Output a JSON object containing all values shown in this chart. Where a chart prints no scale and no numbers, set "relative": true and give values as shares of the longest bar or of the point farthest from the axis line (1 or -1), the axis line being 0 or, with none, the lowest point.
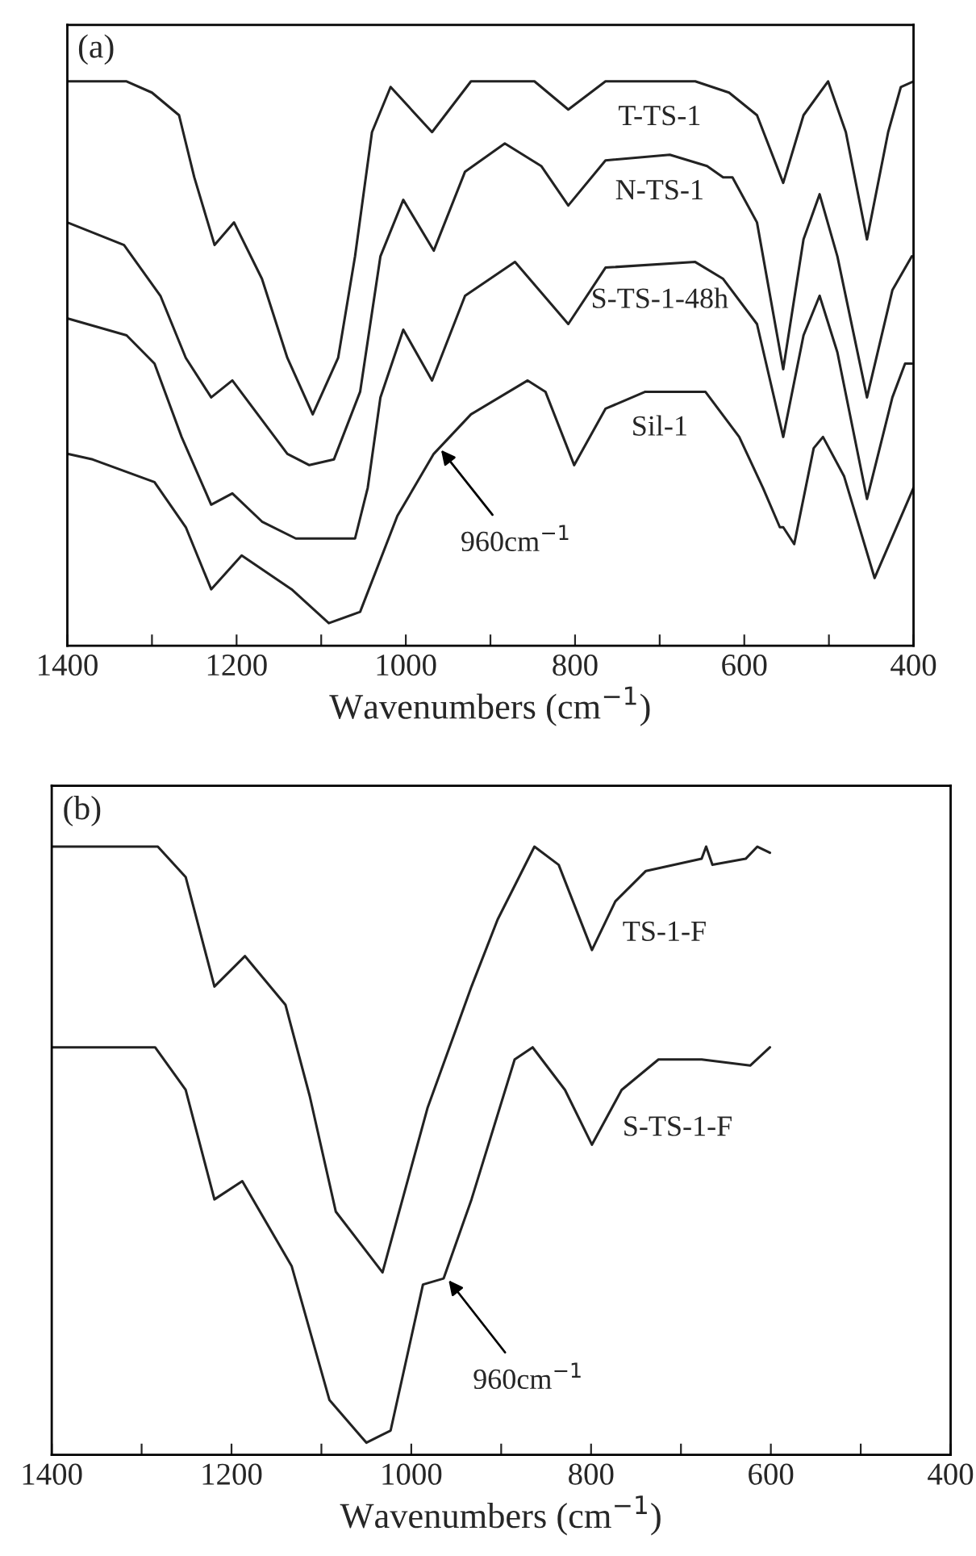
{
  "chart_data": [
    {
      "type": "line",
      "relative": true,
      "xlabel": "Wavenumbers (cm$^{−1}$)",
      "xlim": [
        1400,
        400
      ],
      "xticks": [
        1400,
        {
          "value": 1300,
          "label": null
        },
        1200,
        {
          "value": 1100,
          "label": null
        },
        1000,
        {
          "value": 900,
          "label": null
        },
        800,
        {
          "value": 700,
          "label": null
        },
        600,
        {
          "value": 500,
          "label": null
        },
        400
      ],
      "tick_labels": "x",
      "grid": false,
      "legend": false,
      "annotations": [
        "(a)",
        {
          "text": "960cm$^{−1}$",
          "x": 960,
          "y": 0.35
        }
      ],
      "series": [
        {
          "name": "T-TS-1",
          "color": "#222222",
          "x": [
            1400,
            1330,
            1300,
            1268,
            1250,
            1226,
            1203,
            1170,
            1140,
            1110,
            1080,
            1060,
            1040,
            1018,
            969,
            923,
            848,
            808,
            764,
            658,
            618,
            585,
            554,
            530,
            501,
            480,
            455,
            430,
            415,
            400
          ],
          "values": [
            1.0,
            1.0,
            0.98,
            0.94,
            0.83,
            0.71,
            0.75,
            0.65,
            0.51,
            0.41,
            0.51,
            0.69,
            0.91,
            0.99,
            0.91,
            1.0,
            1.0,
            0.95,
            1.0,
            1.0,
            0.98,
            0.94,
            0.82,
            0.94,
            1.0,
            0.91,
            0.72,
            0.91,
            0.99,
            1.0
          ]
        },
        {
          "name": "N-TS-1",
          "color": "#222222",
          "x": [
            1400,
            1333,
            1290,
            1260,
            1230,
            1205,
            1170,
            1140,
            1114,
            1085,
            1054,
            1030,
            1003,
            967,
            930,
            883,
            840,
            808,
            764,
            688,
            644,
            625,
            614,
            585,
            554,
            530,
            511,
            490,
            455,
            425,
            402
          ],
          "values": [
            0.75,
            0.71,
            0.62,
            0.51,
            0.44,
            0.47,
            0.4,
            0.34,
            0.32,
            0.33,
            0.45,
            0.69,
            0.79,
            0.7,
            0.84,
            0.89,
            0.85,
            0.78,
            0.86,
            0.87,
            0.85,
            0.83,
            0.83,
            0.75,
            0.49,
            0.72,
            0.8,
            0.69,
            0.44,
            0.63,
            0.69
          ]
        },
        {
          "name": "S-TS-1-48h",
          "color": "#222222",
          "x": [
            1400,
            1330,
            1297,
            1265,
            1230,
            1205,
            1170,
            1130,
            1110,
            1060,
            1045,
            1030,
            1003,
            969,
            930,
            871,
            808,
            764,
            658,
            625,
            585,
            554,
            530,
            511,
            490,
            455,
            425,
            410,
            402
          ],
          "values": [
            0.58,
            0.55,
            0.5,
            0.37,
            0.25,
            0.27,
            0.22,
            0.19,
            0.19,
            0.19,
            0.28,
            0.44,
            0.56,
            0.47,
            0.62,
            0.68,
            0.57,
            0.67,
            0.68,
            0.65,
            0.57,
            0.37,
            0.55,
            0.62,
            0.52,
            0.26,
            0.44,
            0.5,
            0.5
          ]
        },
        {
          "name": "Sil-1",
          "color": "#222222",
          "x": [
            1400,
            1370,
            1297,
            1260,
            1230,
            1194,
            1135,
            1091,
            1054,
            1010,
            967,
            923,
            856,
            835,
            801,
            764,
            717,
            673,
            646,
            606,
            578,
            558,
            554,
            541,
            518,
            507,
            482,
            446,
            400
          ],
          "values": [
            0.34,
            0.33,
            0.29,
            0.21,
            0.1,
            0.16,
            0.1,
            0.04,
            0.06,
            0.23,
            0.34,
            0.41,
            0.47,
            0.45,
            0.32,
            0.42,
            0.45,
            0.45,
            0.45,
            0.37,
            0.28,
            0.21,
            0.21,
            0.18,
            0.35,
            0.37,
            0.3,
            0.12,
            0.28
          ]
        }
      ]
    },
    {
      "type": "line",
      "relative": true,
      "xlabel": "Wavenumbers (cm$^{−1}$)",
      "xlim": [
        1400,
        400
      ],
      "xticks": [
        1400,
        {
          "value": 1300,
          "label": null
        },
        1200,
        {
          "value": 1100,
          "label": null
        },
        1000,
        {
          "value": 900,
          "label": null
        },
        800,
        {
          "value": 700,
          "label": null
        },
        600,
        {
          "value": 500,
          "label": null
        },
        400
      ],
      "tick_labels": "x",
      "grid": false,
      "legend": false,
      "annotations": [
        "(b)",
        {
          "text": "960cm$^{−1}$",
          "x": 960,
          "y": 0.29
        }
      ],
      "series": [
        {
          "name": "TS-1-F",
          "color": "#222222",
          "x": [
            1400,
            1282,
            1251,
            1219,
            1185,
            1140,
            1113,
            1084,
            1032,
            982,
            933,
            904,
            863,
            836,
            799,
            773,
            739,
            677,
            672,
            665,
            628,
            615,
            601
          ],
          "values": [
            1.0,
            1.0,
            0.95,
            0.77,
            0.82,
            0.74,
            0.59,
            0.4,
            0.3,
            0.57,
            0.77,
            0.88,
            1.0,
            0.97,
            0.83,
            0.91,
            0.96,
            0.98,
            1.0,
            0.97,
            0.98,
            1.0,
            0.99
          ]
        },
        {
          "name": "S-TS-1-F",
          "color": "#222222",
          "x": [
            1400,
            1285,
            1251,
            1219,
            1188,
            1133,
            1091,
            1050,
            1023,
            987,
            964,
            933,
            885,
            865,
            829,
            799,
            766,
            725,
            677,
            623,
            601
          ],
          "values": [
            0.67,
            0.67,
            0.6,
            0.42,
            0.45,
            0.31,
            0.09,
            0.02,
            0.04,
            0.28,
            0.29,
            0.42,
            0.65,
            0.67,
            0.6,
            0.51,
            0.6,
            0.65,
            0.65,
            0.64,
            0.67
          ]
        }
      ]
    }
  ]
}
